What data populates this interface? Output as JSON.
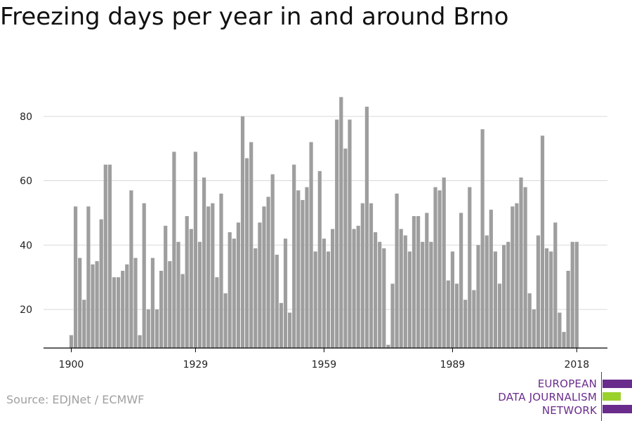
{
  "title": "Freezing days per year in and around Brno",
  "source": "Source: EDJNet / ECMWF",
  "logo": {
    "line1": "EUROPEAN",
    "line2": "DATA JOURNALISM",
    "line3": "NETWORK",
    "purple": "#6a2c8c",
    "green": "#9bd12c"
  },
  "colors": {
    "bar": "#9e9e9e",
    "grid": "#d9d9d9",
    "axis": "#000000"
  },
  "chart_data": {
    "type": "bar",
    "x_start": 1900,
    "xlim": [
      1900,
      2018
    ],
    "ylim": [
      8,
      90
    ],
    "yticks": [
      20,
      40,
      60,
      80
    ],
    "xticks": [
      1900,
      1929,
      1959,
      1989,
      2018
    ],
    "grid": true,
    "xlabel": "",
    "ylabel": "",
    "values": [
      12,
      52,
      36,
      23,
      52,
      34,
      35,
      48,
      65,
      65,
      30,
      30,
      32,
      34,
      57,
      36,
      12,
      53,
      20,
      36,
      20,
      32,
      46,
      35,
      69,
      41,
      31,
      49,
      45,
      69,
      41,
      61,
      52,
      53,
      30,
      56,
      25,
      44,
      42,
      47,
      80,
      67,
      72,
      39,
      47,
      52,
      55,
      62,
      37,
      22,
      42,
      19,
      65,
      57,
      54,
      58,
      72,
      38,
      63,
      42,
      38,
      45,
      79,
      86,
      70,
      79,
      45,
      46,
      53,
      83,
      53,
      44,
      41,
      39,
      9,
      28,
      56,
      45,
      43,
      38,
      49,
      49,
      41,
      50,
      41,
      58,
      57,
      61,
      29,
      38,
      28,
      50,
      23,
      58,
      26,
      40,
      76,
      43,
      51,
      38,
      28,
      40,
      41,
      52,
      53,
      61,
      58,
      25,
      20,
      43,
      74,
      39,
      38,
      47,
      19,
      13,
      32,
      41,
      41
    ]
  }
}
